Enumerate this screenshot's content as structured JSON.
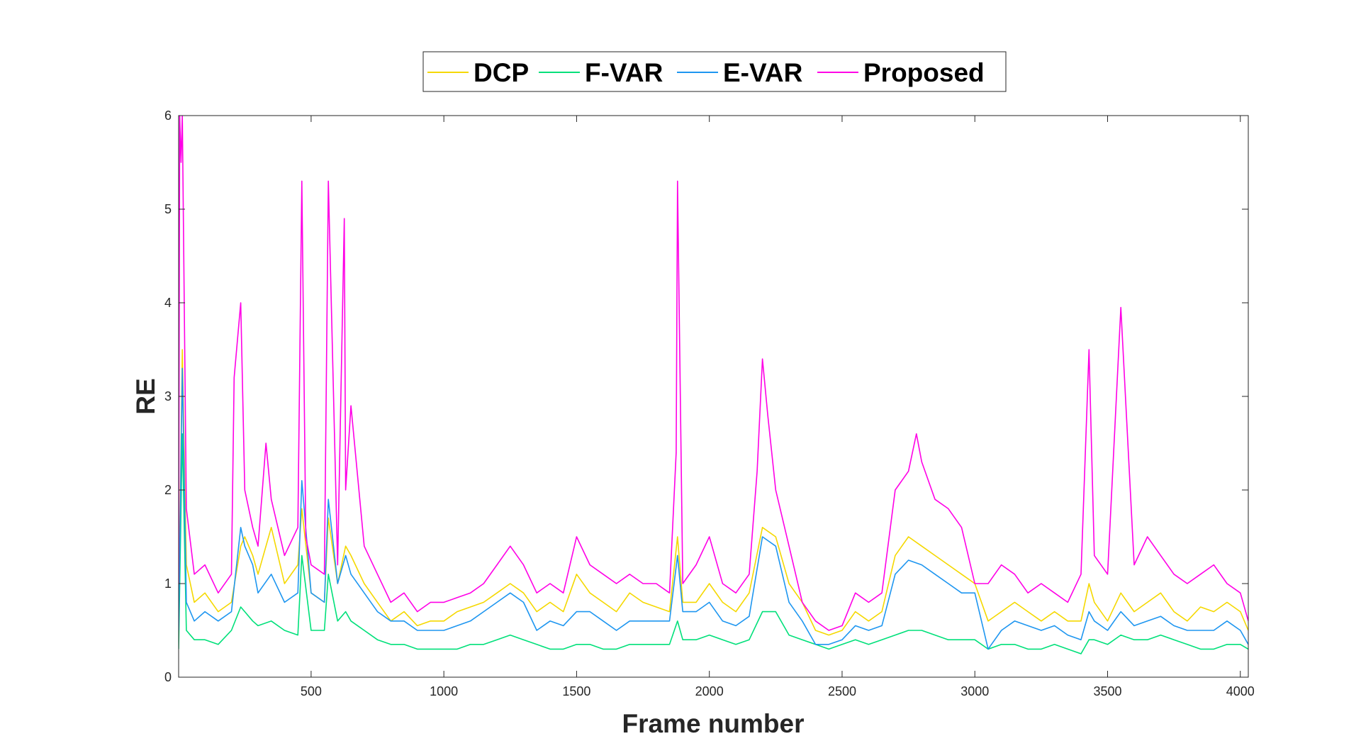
{
  "chart_data": {
    "type": "line",
    "title": "",
    "xlabel": "Frame number",
    "ylabel": "RE",
    "xlim": [
      1,
      4030
    ],
    "ylim": [
      0,
      6
    ],
    "x_ticks": [
      500,
      1000,
      1500,
      2000,
      2500,
      3000,
      3500,
      4000
    ],
    "x_tick_labels": [
      "500",
      "1000",
      "1500",
      "2000",
      "2500",
      "3000",
      "3500",
      "4000"
    ],
    "y_ticks": [
      0,
      1,
      2,
      3,
      4,
      5,
      6
    ],
    "y_tick_labels": [
      "0",
      "1",
      "2",
      "3",
      "4",
      "5",
      "6"
    ],
    "grid": false,
    "legend_position": "top-center",
    "legend_orientation": "horizontal",
    "series": [
      {
        "name": "DCP",
        "color": "#f5d800",
        "x": [
          1,
          15,
          30,
          60,
          100,
          150,
          200,
          235,
          250,
          280,
          300,
          350,
          400,
          450,
          465,
          500,
          550,
          565,
          600,
          630,
          650,
          700,
          750,
          800,
          850,
          900,
          950,
          1000,
          1050,
          1100,
          1150,
          1200,
          1250,
          1300,
          1350,
          1400,
          1450,
          1500,
          1550,
          1600,
          1650,
          1700,
          1750,
          1800,
          1850,
          1880,
          1900,
          1950,
          2000,
          2050,
          2100,
          2150,
          2200,
          2250,
          2300,
          2350,
          2400,
          2450,
          2500,
          2550,
          2600,
          2650,
          2700,
          2750,
          2800,
          2850,
          2900,
          2950,
          3000,
          3050,
          3100,
          3150,
          3200,
          3250,
          3300,
          3350,
          3400,
          3430,
          3450,
          3500,
          3550,
          3600,
          3650,
          3700,
          3750,
          3800,
          3850,
          3900,
          3950,
          4000,
          4030
        ],
        "y": [
          0.6,
          3.5,
          1.2,
          0.8,
          0.9,
          0.7,
          0.8,
          1.4,
          1.5,
          1.3,
          1.1,
          1.6,
          1.0,
          1.2,
          1.8,
          0.9,
          0.8,
          1.7,
          1.0,
          1.4,
          1.3,
          1.0,
          0.8,
          0.6,
          0.7,
          0.55,
          0.6,
          0.6,
          0.7,
          0.75,
          0.8,
          0.9,
          1.0,
          0.9,
          0.7,
          0.8,
          0.7,
          1.1,
          0.9,
          0.8,
          0.7,
          0.9,
          0.8,
          0.75,
          0.7,
          1.5,
          0.8,
          0.8,
          1.0,
          0.8,
          0.7,
          0.9,
          1.6,
          1.5,
          1.0,
          0.8,
          0.5,
          0.45,
          0.5,
          0.7,
          0.6,
          0.7,
          1.3,
          1.5,
          1.4,
          1.3,
          1.2,
          1.1,
          1.0,
          0.6,
          0.7,
          0.8,
          0.7,
          0.6,
          0.7,
          0.6,
          0.6,
          1.0,
          0.8,
          0.6,
          0.9,
          0.7,
          0.8,
          0.9,
          0.7,
          0.6,
          0.75,
          0.7,
          0.8,
          0.7,
          0.5
        ]
      },
      {
        "name": "F-VAR",
        "color": "#00e07a",
        "x": [
          1,
          15,
          30,
          60,
          100,
          150,
          200,
          235,
          250,
          280,
          300,
          350,
          400,
          450,
          465,
          500,
          550,
          565,
          600,
          630,
          650,
          700,
          750,
          800,
          850,
          900,
          950,
          1000,
          1050,
          1100,
          1150,
          1200,
          1250,
          1300,
          1350,
          1400,
          1450,
          1500,
          1550,
          1600,
          1650,
          1700,
          1750,
          1800,
          1850,
          1880,
          1900,
          1950,
          2000,
          2050,
          2100,
          2150,
          2200,
          2250,
          2300,
          2350,
          2400,
          2450,
          2500,
          2550,
          2600,
          2650,
          2700,
          2750,
          2800,
          2850,
          2900,
          2950,
          3000,
          3050,
          3100,
          3150,
          3200,
          3250,
          3300,
          3350,
          3400,
          3430,
          3450,
          3500,
          3550,
          3600,
          3650,
          3700,
          3750,
          3800,
          3850,
          3900,
          3950,
          4000,
          4030
        ],
        "y": [
          0.3,
          2.6,
          0.5,
          0.4,
          0.4,
          0.35,
          0.5,
          0.75,
          0.7,
          0.6,
          0.55,
          0.6,
          0.5,
          0.45,
          1.3,
          0.5,
          0.5,
          1.1,
          0.6,
          0.7,
          0.6,
          0.5,
          0.4,
          0.35,
          0.35,
          0.3,
          0.3,
          0.3,
          0.3,
          0.35,
          0.35,
          0.4,
          0.45,
          0.4,
          0.35,
          0.3,
          0.3,
          0.35,
          0.35,
          0.3,
          0.3,
          0.35,
          0.35,
          0.35,
          0.35,
          0.6,
          0.4,
          0.4,
          0.45,
          0.4,
          0.35,
          0.4,
          0.7,
          0.7,
          0.45,
          0.4,
          0.35,
          0.3,
          0.35,
          0.4,
          0.35,
          0.4,
          0.45,
          0.5,
          0.5,
          0.45,
          0.4,
          0.4,
          0.4,
          0.3,
          0.35,
          0.35,
          0.3,
          0.3,
          0.35,
          0.3,
          0.25,
          0.4,
          0.4,
          0.35,
          0.45,
          0.4,
          0.4,
          0.45,
          0.4,
          0.35,
          0.3,
          0.3,
          0.35,
          0.35,
          0.3
        ]
      },
      {
        "name": "E-VAR",
        "color": "#1e96f0",
        "x": [
          1,
          15,
          30,
          60,
          100,
          150,
          200,
          235,
          250,
          280,
          300,
          350,
          400,
          450,
          465,
          500,
          550,
          565,
          600,
          630,
          650,
          700,
          750,
          800,
          850,
          900,
          950,
          1000,
          1050,
          1100,
          1150,
          1200,
          1250,
          1300,
          1350,
          1400,
          1450,
          1500,
          1550,
          1600,
          1650,
          1700,
          1750,
          1800,
          1850,
          1880,
          1900,
          1950,
          2000,
          2050,
          2100,
          2150,
          2200,
          2250,
          2300,
          2350,
          2400,
          2450,
          2500,
          2550,
          2600,
          2650,
          2700,
          2750,
          2800,
          2850,
          2900,
          2950,
          3000,
          3050,
          3100,
          3150,
          3200,
          3250,
          3300,
          3350,
          3400,
          3430,
          3450,
          3500,
          3550,
          3600,
          3650,
          3700,
          3750,
          3800,
          3850,
          3900,
          3950,
          4000,
          4030
        ],
        "y": [
          0.5,
          3.3,
          0.8,
          0.6,
          0.7,
          0.6,
          0.7,
          1.6,
          1.4,
          1.2,
          0.9,
          1.1,
          0.8,
          0.9,
          2.1,
          0.9,
          0.8,
          1.9,
          1.0,
          1.3,
          1.1,
          0.9,
          0.7,
          0.6,
          0.6,
          0.5,
          0.5,
          0.5,
          0.55,
          0.6,
          0.7,
          0.8,
          0.9,
          0.8,
          0.5,
          0.6,
          0.55,
          0.7,
          0.7,
          0.6,
          0.5,
          0.6,
          0.6,
          0.6,
          0.6,
          1.3,
          0.7,
          0.7,
          0.8,
          0.6,
          0.55,
          0.65,
          1.5,
          1.4,
          0.8,
          0.6,
          0.35,
          0.35,
          0.4,
          0.55,
          0.5,
          0.55,
          1.1,
          1.25,
          1.2,
          1.1,
          1.0,
          0.9,
          0.9,
          0.3,
          0.5,
          0.6,
          0.55,
          0.5,
          0.55,
          0.45,
          0.4,
          0.7,
          0.6,
          0.5,
          0.7,
          0.55,
          0.6,
          0.65,
          0.55,
          0.5,
          0.5,
          0.5,
          0.6,
          0.5,
          0.35
        ]
      },
      {
        "name": "Proposed",
        "color": "#ff00e6",
        "x": [
          1,
          5,
          10,
          15,
          20,
          30,
          60,
          100,
          150,
          200,
          210,
          235,
          250,
          280,
          300,
          330,
          350,
          400,
          450,
          465,
          480,
          500,
          550,
          565,
          600,
          625,
          630,
          650,
          700,
          750,
          800,
          850,
          900,
          950,
          1000,
          1050,
          1100,
          1150,
          1200,
          1250,
          1300,
          1350,
          1400,
          1450,
          1500,
          1550,
          1600,
          1650,
          1700,
          1750,
          1800,
          1850,
          1875,
          1880,
          1900,
          1950,
          2000,
          2050,
          2100,
          2150,
          2180,
          2200,
          2220,
          2250,
          2300,
          2350,
          2400,
          2450,
          2500,
          2550,
          2600,
          2650,
          2700,
          2750,
          2780,
          2800,
          2850,
          2900,
          2950,
          3000,
          3050,
          3100,
          3150,
          3200,
          3250,
          3300,
          3350,
          3400,
          3430,
          3450,
          3500,
          3550,
          3600,
          3650,
          3700,
          3750,
          3800,
          3850,
          3900,
          3950,
          4000,
          4030
        ],
        "y": [
          1.0,
          6.0,
          5.5,
          6.0,
          4.6,
          1.8,
          1.1,
          1.2,
          0.9,
          1.1,
          3.2,
          4.0,
          2.0,
          1.6,
          1.4,
          2.5,
          1.9,
          1.3,
          1.6,
          5.3,
          1.5,
          1.2,
          1.1,
          5.3,
          1.2,
          4.9,
          2.0,
          2.9,
          1.4,
          1.1,
          0.8,
          0.9,
          0.7,
          0.8,
          0.8,
          0.85,
          0.9,
          1.0,
          1.2,
          1.4,
          1.2,
          0.9,
          1.0,
          0.9,
          1.5,
          1.2,
          1.1,
          1.0,
          1.1,
          1.0,
          1.0,
          0.9,
          2.4,
          5.3,
          1.0,
          1.2,
          1.5,
          1.0,
          0.9,
          1.1,
          2.2,
          3.4,
          2.8,
          2.0,
          1.4,
          0.8,
          0.6,
          0.5,
          0.55,
          0.9,
          0.8,
          0.9,
          2.0,
          2.2,
          2.6,
          2.3,
          1.9,
          1.8,
          1.6,
          1.0,
          1.0,
          1.2,
          1.1,
          0.9,
          1.0,
          0.9,
          0.8,
          1.1,
          3.5,
          1.3,
          1.1,
          3.95,
          1.2,
          1.5,
          1.3,
          1.1,
          1.0,
          1.1,
          1.2,
          1.0,
          0.9,
          0.6
        ]
      }
    ]
  }
}
